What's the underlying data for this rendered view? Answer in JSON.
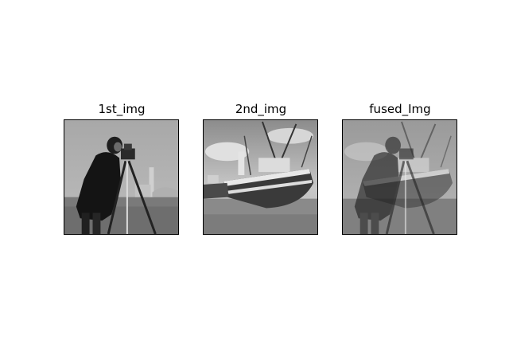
{
  "panels": [
    {
      "title": "1st_img",
      "depicts": "cameraman-photo"
    },
    {
      "title": "2nd_img",
      "depicts": "boat-photo"
    },
    {
      "title": "fused_Img",
      "depicts": "fused-photo"
    }
  ],
  "colors": {
    "background": "#ffffff",
    "frame": "#000000"
  }
}
